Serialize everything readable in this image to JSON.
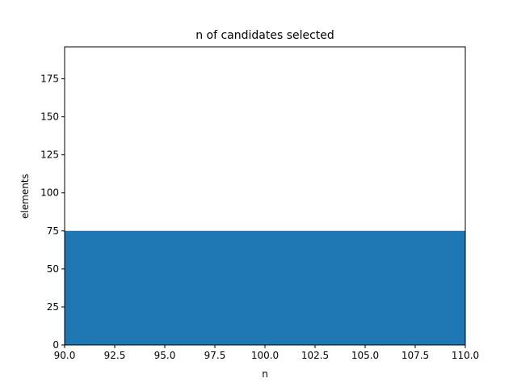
{
  "chart_data": {
    "type": "area",
    "title": "n of candidates selected",
    "xlabel": "n",
    "ylabel": "elements",
    "xlim": [
      90,
      110
    ],
    "ylim": [
      0,
      196
    ],
    "x_ticks": [
      90,
      92.5,
      95,
      97.5,
      100,
      102.5,
      105,
      107.5,
      110
    ],
    "x_tick_labels": [
      "90.0",
      "92.5",
      "95.0",
      "97.5",
      "100.0",
      "102.5",
      "105.0",
      "107.5",
      "110.0"
    ],
    "y_ticks": [
      0,
      25,
      50,
      75,
      100,
      125,
      150,
      175
    ],
    "y_tick_labels": [
      "0",
      "25",
      "50",
      "75",
      "100",
      "125",
      "150",
      "175"
    ],
    "series": [
      {
        "x": [
          90,
          110
        ],
        "values": [
          75,
          75
        ],
        "color": "#1f77b4"
      }
    ],
    "grid": false,
    "legend": "none"
  }
}
